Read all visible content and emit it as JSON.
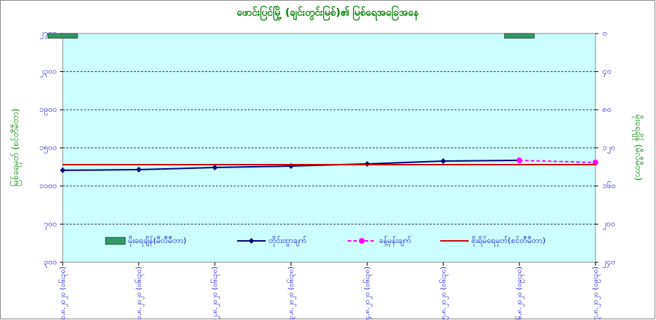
{
  "chart_data": {
    "type": "line",
    "title": "ဖောင်းပြင်မြို့ (ချင်းတွင်းမြစ်)၏ မြစ်ရေအခြေအနေ",
    "y_label": "မြစ်ရေမှတ် (စင်တီမီတာ)",
    "y2_label": "မိုးရေချိန် (မီလီမီတာ)",
    "categories": [
      "၁၀.၈.၂၀၂၀ (၀၆း၃၀)",
      "၁၁.၈.၂၀၂၀ (၀၆း၃၀)",
      "၁၂.၈.၂၀၂၀ (၀၆း၃၀)",
      "၁၃.၈.၂၀၂၀ (၀၆း၃၀)",
      "၁၄.၈.၂၀၂၀ (၀၆း၃၀)",
      "၁၅.၈.၂၀၂၀ (၀၆း၃၀)",
      "၁၆.၈.၂၀၂၀ (၀၉း၃၀)",
      "၁၇.၈.၂၀၂၀ (၀၉း၃၀)"
    ],
    "series": [
      {
        "name": "မိုးရေချိန်(မီလီမီတာ)",
        "kind": "bar",
        "axis": "y2",
        "color": "#339966",
        "values": [
          5,
          0,
          0,
          0,
          0,
          0,
          5,
          0
        ]
      },
      {
        "name": "တိုင်းထွာချက်",
        "kind": "line",
        "marker": "diamond",
        "color": "#000080",
        "values": [
          1265,
          1272,
          1294,
          1309,
          1332,
          1362,
          1369,
          null
        ]
      },
      {
        "name": "ခန့်မှန်းချက်",
        "kind": "line",
        "marker": "circle",
        "dashed": true,
        "color": "#ff00ff",
        "values": [
          null,
          null,
          null,
          null,
          null,
          null,
          1369,
          1347
        ]
      },
      {
        "name": "စိုးရိမ်ရေမှတ်(စင်တီမီတာ)",
        "kind": "line",
        "color": "#cc0000",
        "values": [
          1324,
          1324,
          1324,
          1324,
          1324,
          1324,
          1324,
          1324
        ]
      }
    ],
    "ylim": [
      300,
      2700
    ],
    "yticks": [
      {
        "value": 300,
        "label": "၃၀၀"
      },
      {
        "value": 700,
        "label": "၇၀၀"
      },
      {
        "value": 1100,
        "label": "၁၁၀၀"
      },
      {
        "value": 1500,
        "label": "၁၅၀၀"
      },
      {
        "value": 1900,
        "label": "၁၉၀၀"
      },
      {
        "value": 2300,
        "label": "၂၃၀၀"
      },
      {
        "value": 2700,
        "label": "၂၇၀၀"
      }
    ],
    "y2lim": [
      0,
      240
    ],
    "y2_inverted": true,
    "y2ticks": [
      {
        "value": 0,
        "label": "၀"
      },
      {
        "value": 40,
        "label": "၄၀"
      },
      {
        "value": 80,
        "label": "၈၀"
      },
      {
        "value": 120,
        "label": "၁၂၀"
      },
      {
        "value": 160,
        "label": "၁၆၀"
      },
      {
        "value": 200,
        "label": "၂၀၀"
      },
      {
        "value": 240,
        "label": "၂၄၀"
      }
    ],
    "grid": true
  }
}
